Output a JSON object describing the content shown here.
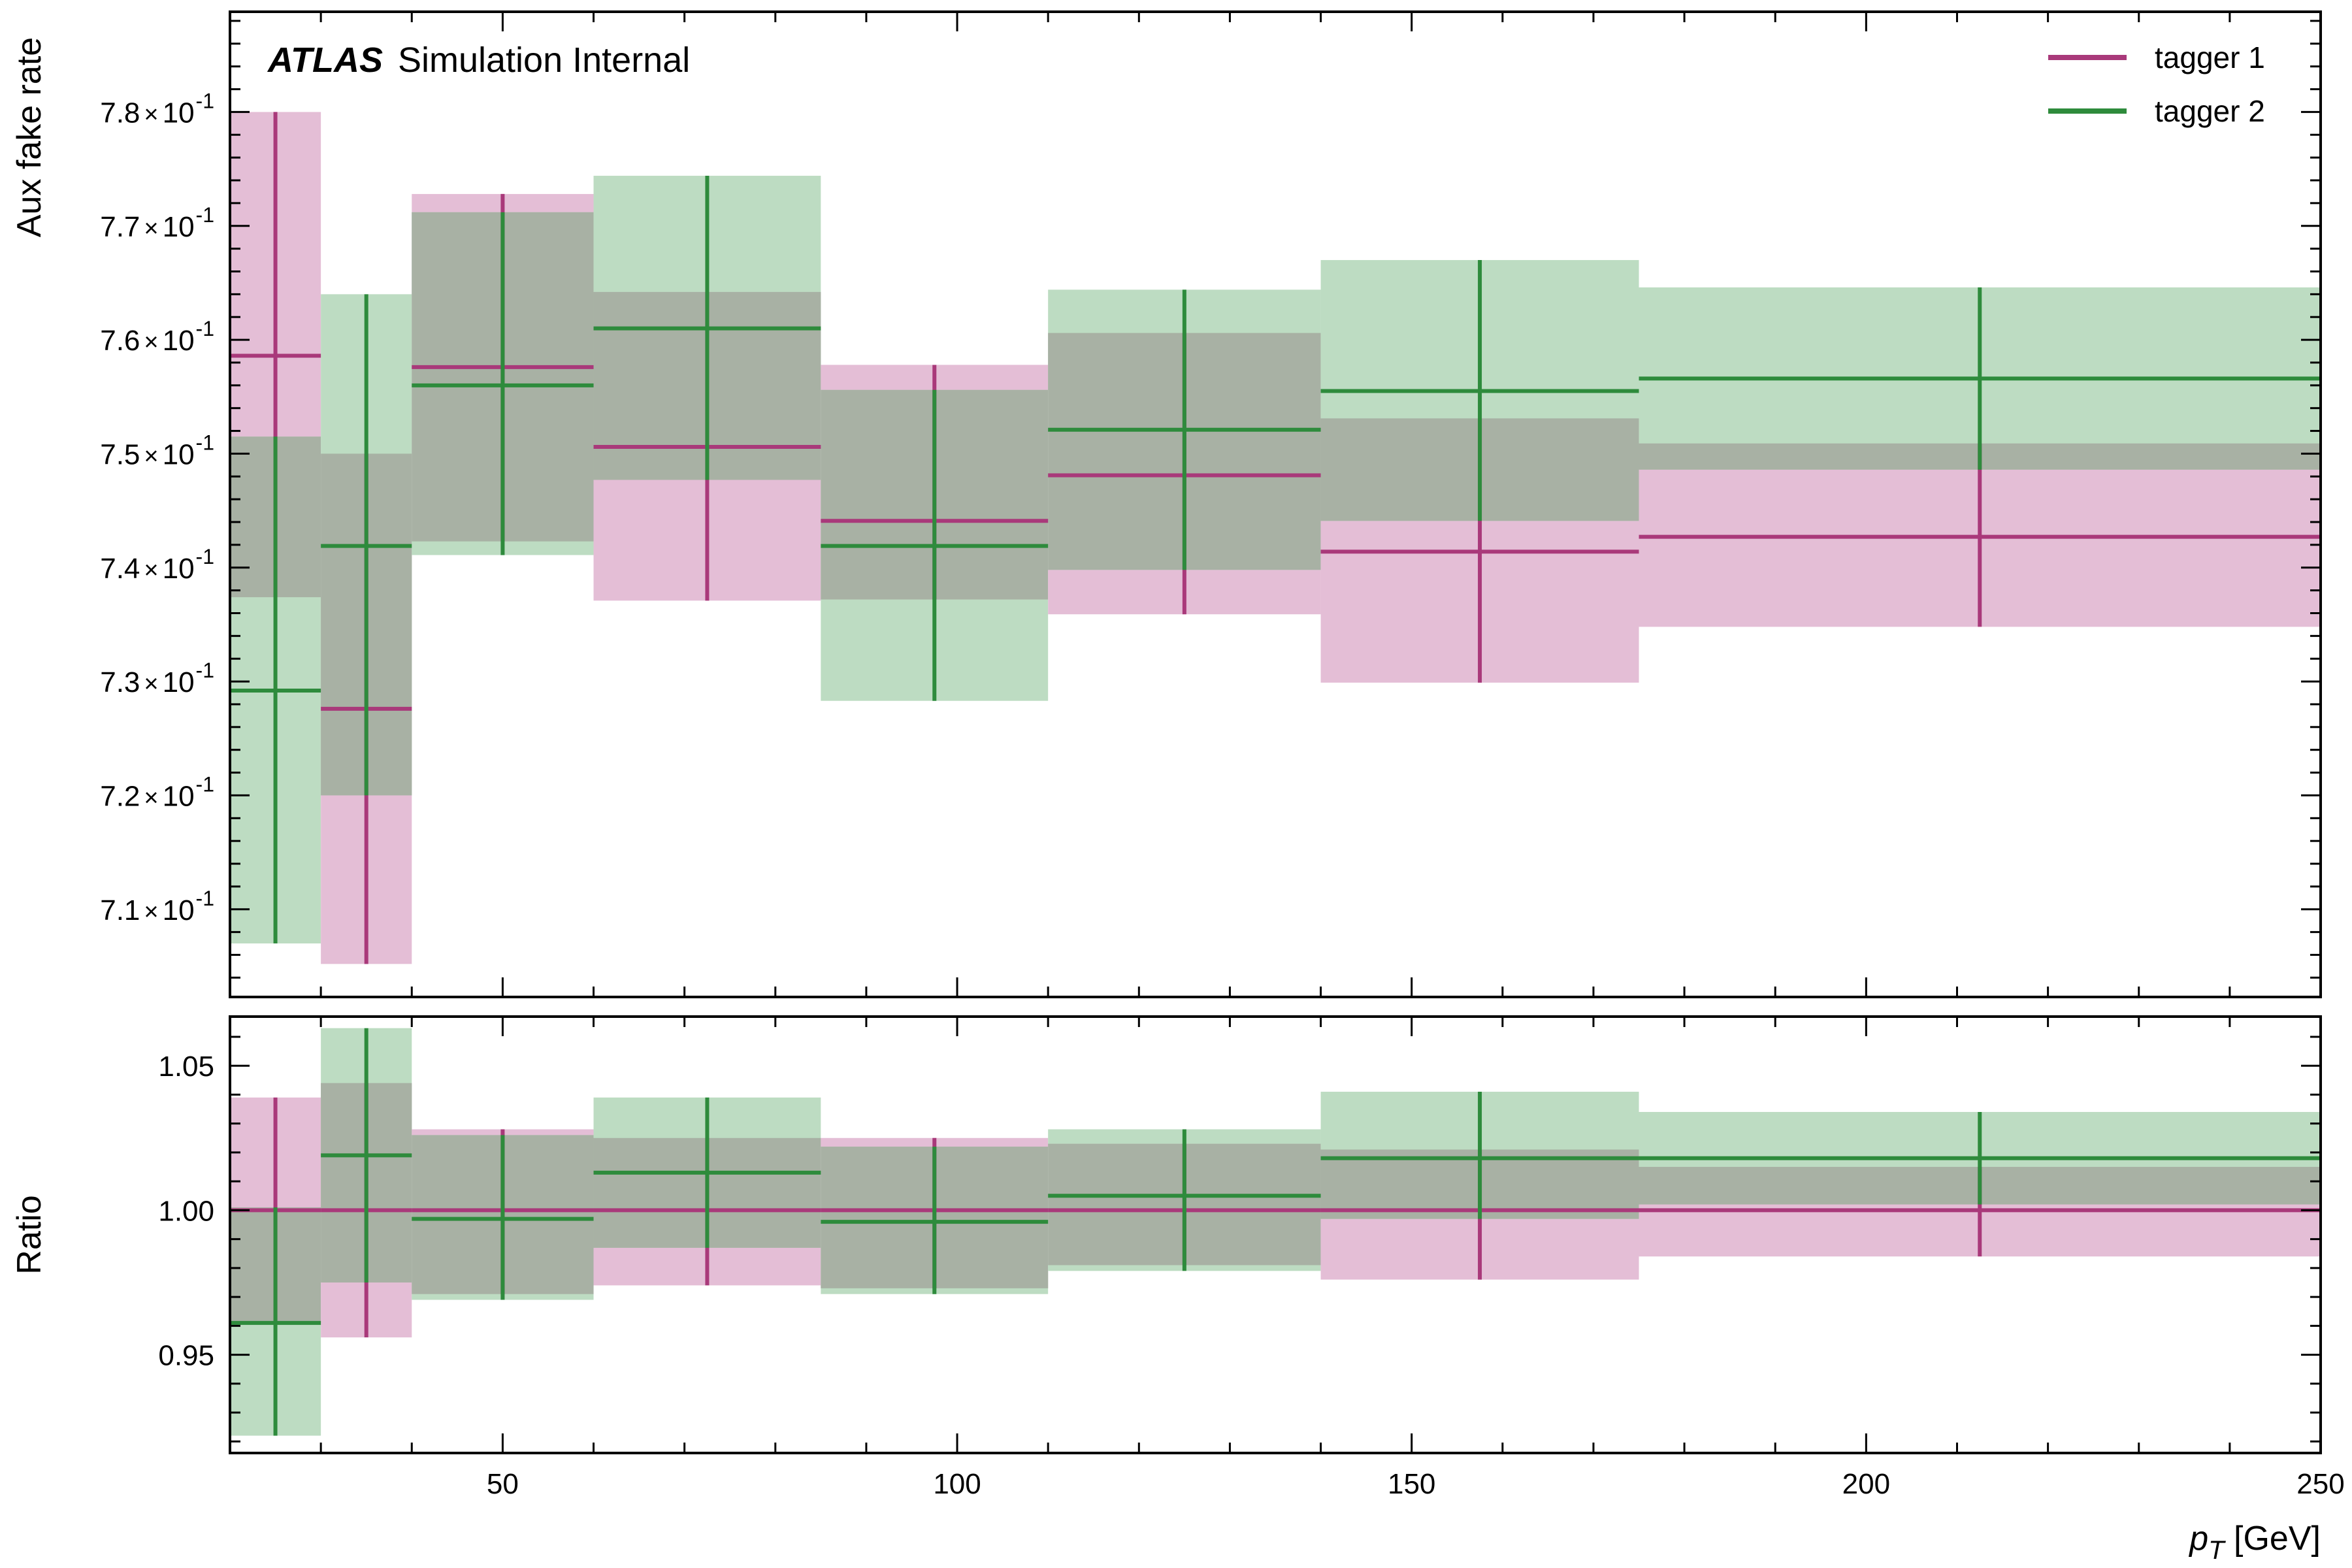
{
  "chart_data": {
    "type": "step",
    "x_label": "p_T [GeV]",
    "x_label_main": "p",
    "x_label_sub": "T",
    "x_label_unit": " [GeV]",
    "xlim": [
      20,
      250
    ],
    "x_ticks": [
      50,
      100,
      150,
      200,
      250
    ],
    "x_minor_step": 10,
    "brand_bold": "ATLAS",
    "brand_text": "Simulation Internal",
    "bins": [
      [
        20,
        30
      ],
      [
        30,
        40
      ],
      [
        40,
        60
      ],
      [
        60,
        85
      ],
      [
        85,
        110
      ],
      [
        110,
        140
      ],
      [
        140,
        175
      ],
      [
        175,
        250
      ]
    ],
    "colors": {
      "tagger 1": "#a9397a",
      "tagger 2": "#2e8b3c"
    },
    "legend": {
      "position": "top-right",
      "entries": [
        "tagger 1",
        "tagger 2"
      ]
    },
    "top_panel": {
      "y_label": "Aux fake rate",
      "ylim": [
        0.7023,
        0.7888
      ],
      "y_ticks": [
        {
          "value": 0.71,
          "mantissa": "7.1",
          "exp": "-1"
        },
        {
          "value": 0.72,
          "mantissa": "7.2",
          "exp": "-1"
        },
        {
          "value": 0.73,
          "mantissa": "7.3",
          "exp": "-1"
        },
        {
          "value": 0.74,
          "mantissa": "7.4",
          "exp": "-1"
        },
        {
          "value": 0.75,
          "mantissa": "7.5",
          "exp": "-1"
        },
        {
          "value": 0.76,
          "mantissa": "7.6",
          "exp": "-1"
        },
        {
          "value": 0.77,
          "mantissa": "7.7",
          "exp": "-1"
        },
        {
          "value": 0.78,
          "mantissa": "7.8",
          "exp": "-1"
        }
      ],
      "x_sep": "×",
      "base": "10",
      "series": [
        {
          "name": "tagger 1",
          "values": [
            0.7586,
            0.7276,
            0.7576,
            0.7506,
            0.7441,
            0.7481,
            0.7414,
            0.7427
          ],
          "band_low": [
            0.7374,
            0.7052,
            0.7423,
            0.7371,
            0.7372,
            0.7359,
            0.7299,
            0.7348
          ],
          "band_high": [
            0.78,
            0.75,
            0.7728,
            0.7642,
            0.7578,
            0.7606,
            0.7531,
            0.7509
          ]
        },
        {
          "name": "tagger 2",
          "values": [
            0.7292,
            0.7419,
            0.756,
            0.761,
            0.7419,
            0.7521,
            0.7555,
            0.7566
          ],
          "band_low": [
            0.707,
            0.72,
            0.7411,
            0.7477,
            0.7283,
            0.7398,
            0.7441,
            0.7486
          ],
          "band_high": [
            0.7515,
            0.764,
            0.7712,
            0.7744,
            0.7556,
            0.7644,
            0.767,
            0.7646
          ]
        }
      ]
    },
    "bottom_panel": {
      "y_label": "Ratio",
      "ylim": [
        0.916,
        1.067
      ],
      "y_ticks": [
        {
          "value": 0.95,
          "label": "0.95"
        },
        {
          "value": 1.0,
          "label": "1.00"
        },
        {
          "value": 1.05,
          "label": "1.05"
        }
      ],
      "series": [
        {
          "name": "tagger 1",
          "values": [
            1.0,
            1.0,
            1.0,
            1.0,
            1.0,
            1.0,
            1.0,
            1.0
          ],
          "band_low": [
            0.961,
            0.956,
            0.971,
            0.974,
            0.973,
            0.981,
            0.976,
            0.984
          ],
          "band_high": [
            1.039,
            1.044,
            1.028,
            1.025,
            1.025,
            1.023,
            1.021,
            1.015
          ]
        },
        {
          "name": "tagger 2",
          "values": [
            0.961,
            1.019,
            0.997,
            1.013,
            0.996,
            1.005,
            1.018,
            1.018
          ],
          "band_low": [
            0.922,
            0.975,
            0.969,
            0.987,
            0.971,
            0.979,
            0.997,
            1.002
          ],
          "band_high": [
            1.001,
            1.063,
            1.026,
            1.039,
            1.022,
            1.028,
            1.041,
            1.034
          ]
        }
      ]
    }
  }
}
